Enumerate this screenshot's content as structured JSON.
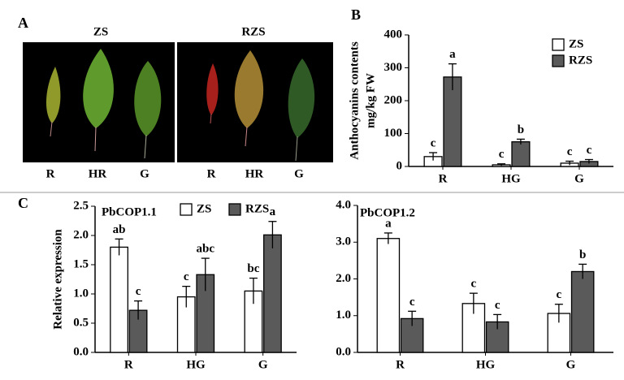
{
  "panel_labels": [
    "A",
    "B",
    "C"
  ],
  "panel_a": {
    "groups": [
      "ZS",
      "RZS"
    ],
    "leaf_labels": [
      [
        "R",
        "HR",
        "G"
      ],
      [
        "R",
        "HR",
        "G"
      ]
    ]
  },
  "chart_data": [
    {
      "type": "bar",
      "y_label": [
        "Anthocyanins contents",
        "mg/kg FW"
      ],
      "categories": [
        "R",
        "HG",
        "G"
      ],
      "ylim": [
        0,
        400
      ],
      "yticks": [
        0,
        100,
        200,
        300,
        400
      ],
      "legend": "upper right",
      "series": [
        {
          "name": "ZS",
          "color": "#ffffff",
          "values": [
            30,
            5,
            10
          ],
          "errors": [
            12,
            3,
            6
          ],
          "letters": [
            "c",
            "c",
            "c"
          ]
        },
        {
          "name": "RZS",
          "color": "#5a5a5a",
          "values": [
            272,
            75,
            15
          ],
          "errors": [
            40,
            8,
            6
          ],
          "letters": [
            "a",
            "b",
            "c"
          ]
        }
      ]
    },
    {
      "type": "bar",
      "title": "PbCOP1.1",
      "y_label": [
        "Relative expression"
      ],
      "categories": [
        "R",
        "HG",
        "G"
      ],
      "ylim": [
        0,
        2.5
      ],
      "yticks": [
        {
          "value": 0,
          "label": "0.0"
        },
        0.5,
        {
          "value": 1,
          "label": "1.0"
        },
        1.5,
        {
          "value": 2,
          "label": "2.0"
        },
        2.5
      ],
      "legend": "upper center",
      "series": [
        {
          "name": "ZS",
          "color": "#ffffff",
          "values": [
            1.8,
            0.95,
            1.05
          ],
          "errors": [
            0.14,
            0.18,
            0.22
          ],
          "letters": [
            "ab",
            "c",
            "bc"
          ]
        },
        {
          "name": "RZS",
          "color": "#5a5a5a",
          "values": [
            0.72,
            1.33,
            2.01
          ],
          "errors": [
            0.16,
            0.28,
            0.23
          ],
          "letters": [
            "c",
            "abc",
            "a"
          ]
        }
      ]
    },
    {
      "type": "bar",
      "title": "PbCOP1.2",
      "categories": [
        "R",
        "HG",
        "G"
      ],
      "ylim": [
        0,
        4
      ],
      "yticks": [
        {
          "value": 0,
          "label": "0.0"
        },
        {
          "value": 1,
          "label": "1.0"
        },
        {
          "value": 2,
          "label": "2.0"
        },
        {
          "value": 3,
          "label": "3.0"
        },
        {
          "value": 4,
          "label": "4.0"
        }
      ],
      "series": [
        {
          "color": "#ffffff",
          "values": [
            3.1,
            1.33,
            1.06
          ],
          "errors": [
            0.15,
            0.28,
            0.25
          ],
          "letters": [
            "a",
            "c",
            "c"
          ]
        },
        {
          "color": "#5a5a5a",
          "values": [
            0.92,
            0.83,
            2.2
          ],
          "errors": [
            0.2,
            0.2,
            0.2
          ],
          "letters": [
            "c",
            "c",
            "b"
          ]
        }
      ]
    }
  ]
}
